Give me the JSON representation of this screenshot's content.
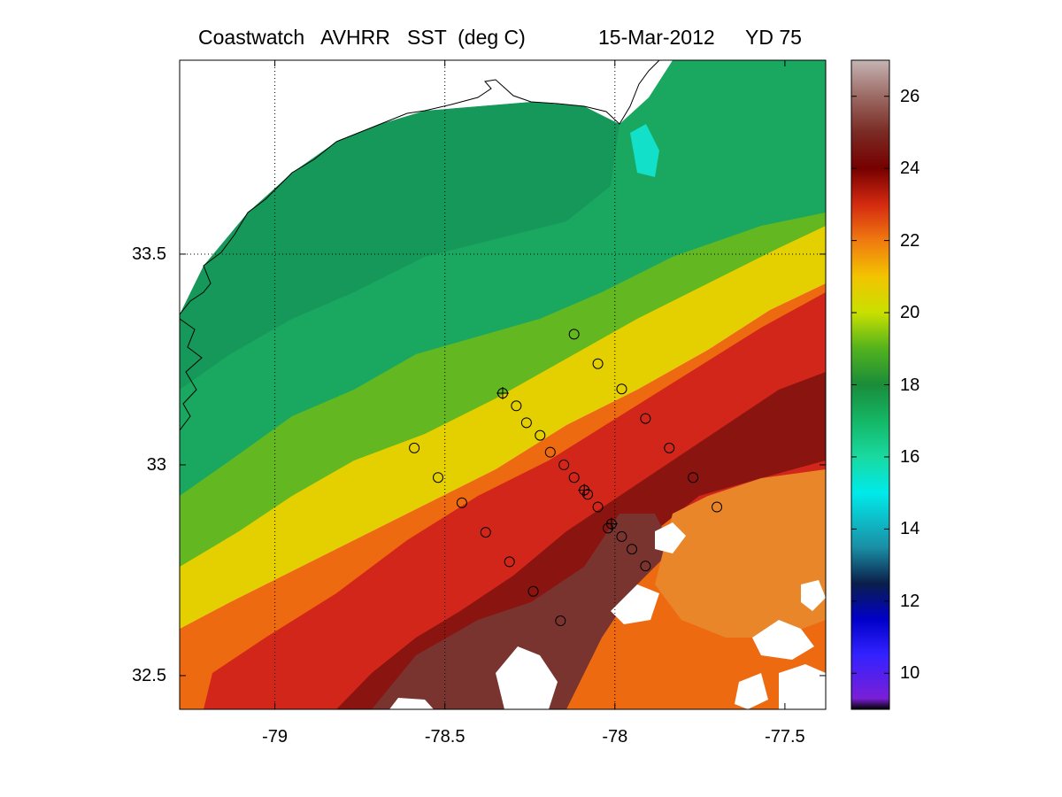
{
  "title": {
    "left": "Coastwatch   AVHRR   SST  (deg C)",
    "date": "15-Mar-2012",
    "yearday": "YD 75"
  },
  "map": {
    "lon_range": [
      -79.28,
      -77.38
    ],
    "lat_range": [
      32.42,
      33.96
    ],
    "x_ticks": [
      {
        "value": -79,
        "label": "-79"
      },
      {
        "value": -78.5,
        "label": "-78.5"
      },
      {
        "value": -78,
        "label": "-78"
      },
      {
        "value": -77.5,
        "label": "-77.5"
      }
    ],
    "y_ticks": [
      {
        "value": 33.5,
        "label": "33.5"
      },
      {
        "value": 33,
        "label": "33"
      },
      {
        "value": 32.5,
        "label": "32.5"
      }
    ],
    "grid_lon": [
      -79,
      -78.5,
      -78
    ],
    "grid_lat": [
      33.5
    ],
    "colors": {
      "land": "#ffffff",
      "cloud": "#ffffff",
      "coastline": "#000000"
    }
  },
  "colorbar": {
    "range": [
      9,
      27
    ],
    "ticks": [
      {
        "value": 26,
        "label": "26"
      },
      {
        "value": 24,
        "label": "24"
      },
      {
        "value": 22,
        "label": "22"
      },
      {
        "value": 20,
        "label": "20"
      },
      {
        "value": 18,
        "label": "18"
      },
      {
        "value": 16,
        "label": "16"
      },
      {
        "value": 14,
        "label": "14"
      },
      {
        "value": 12,
        "label": "12"
      },
      {
        "value": 10,
        "label": "10"
      }
    ],
    "stops": [
      {
        "t": 9.0,
        "c": "#000000"
      },
      {
        "t": 9.3,
        "c": "#7a1fd6"
      },
      {
        "t": 10.5,
        "c": "#3322ff"
      },
      {
        "t": 11.5,
        "c": "#0000c8"
      },
      {
        "t": 12.5,
        "c": "#0b1f4a"
      },
      {
        "t": 13.5,
        "c": "#1a8fa6"
      },
      {
        "t": 15.0,
        "c": "#00eaea"
      },
      {
        "t": 16.0,
        "c": "#19d9a0"
      },
      {
        "t": 17.0,
        "c": "#14b766"
      },
      {
        "t": 18.0,
        "c": "#1a8c3a"
      },
      {
        "t": 19.0,
        "c": "#52b21d"
      },
      {
        "t": 20.0,
        "c": "#c8e000"
      },
      {
        "t": 21.0,
        "c": "#f2c400"
      },
      {
        "t": 22.0,
        "c": "#f07a10"
      },
      {
        "t": 23.0,
        "c": "#d42a10"
      },
      {
        "t": 24.0,
        "c": "#760000"
      },
      {
        "t": 25.0,
        "c": "#7a2a24"
      },
      {
        "t": 26.0,
        "c": "#9c6a64"
      },
      {
        "t": 27.0,
        "c": "#c4b4b4"
      }
    ]
  },
  "stations": [
    {
      "lon": -78.12,
      "lat": 33.31
    },
    {
      "lon": -78.05,
      "lat": 33.24
    },
    {
      "lon": -77.98,
      "lat": 33.18
    },
    {
      "lon": -78.33,
      "lat": 33.17,
      "marker": "plus"
    },
    {
      "lon": -78.29,
      "lat": 33.14
    },
    {
      "lon": -78.26,
      "lat": 33.1
    },
    {
      "lon": -77.91,
      "lat": 33.11
    },
    {
      "lon": -78.22,
      "lat": 33.07
    },
    {
      "lon": -78.59,
      "lat": 33.04
    },
    {
      "lon": -78.19,
      "lat": 33.03
    },
    {
      "lon": -77.84,
      "lat": 33.04
    },
    {
      "lon": -78.15,
      "lat": 33.0
    },
    {
      "lon": -78.52,
      "lat": 32.97
    },
    {
      "lon": -78.12,
      "lat": 32.97
    },
    {
      "lon": -77.77,
      "lat": 32.97
    },
    {
      "lon": -78.09,
      "lat": 32.94,
      "marker": "plus"
    },
    {
      "lon": -78.08,
      "lat": 32.93
    },
    {
      "lon": -78.45,
      "lat": 32.91
    },
    {
      "lon": -78.05,
      "lat": 32.9
    },
    {
      "lon": -77.7,
      "lat": 32.9
    },
    {
      "lon": -78.01,
      "lat": 32.86,
      "marker": "plus"
    },
    {
      "lon": -78.02,
      "lat": 32.85
    },
    {
      "lon": -78.38,
      "lat": 32.84
    },
    {
      "lon": -77.98,
      "lat": 32.83
    },
    {
      "lon": -77.95,
      "lat": 32.8
    },
    {
      "lon": -78.31,
      "lat": 32.77
    },
    {
      "lon": -77.91,
      "lat": 32.76
    },
    {
      "lon": -78.24,
      "lat": 32.7
    },
    {
      "lon": -78.16,
      "lat": 32.63
    }
  ]
}
